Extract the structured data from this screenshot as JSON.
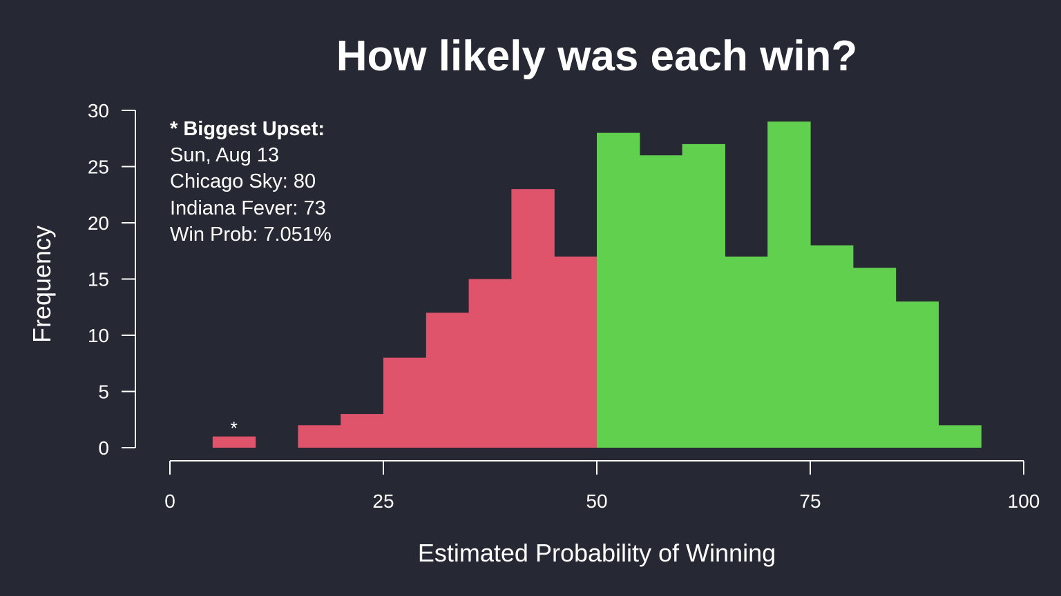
{
  "chart_data": {
    "type": "bar",
    "title": "How likely was each win?",
    "xlabel": "Estimated Probability of Winning",
    "ylabel": "Frequency",
    "xlim": [
      0,
      100
    ],
    "ylim": [
      0,
      30
    ],
    "x_ticks": [
      0,
      25,
      50,
      75,
      100
    ],
    "y_ticks": [
      0,
      5,
      10,
      15,
      20,
      25,
      30
    ],
    "bin_width": 5,
    "bins": [
      {
        "x0": 5,
        "x1": 10,
        "count": 1
      },
      {
        "x0": 15,
        "x1": 20,
        "count": 2
      },
      {
        "x0": 20,
        "x1": 25,
        "count": 3
      },
      {
        "x0": 25,
        "x1": 30,
        "count": 8
      },
      {
        "x0": 30,
        "x1": 35,
        "count": 12
      },
      {
        "x0": 35,
        "x1": 40,
        "count": 15
      },
      {
        "x0": 40,
        "x1": 45,
        "count": 23
      },
      {
        "x0": 45,
        "x1": 50,
        "count": 17
      },
      {
        "x0": 50,
        "x1": 55,
        "count": 28
      },
      {
        "x0": 55,
        "x1": 60,
        "count": 26
      },
      {
        "x0": 60,
        "x1": 65,
        "count": 27
      },
      {
        "x0": 65,
        "x1": 70,
        "count": 17
      },
      {
        "x0": 70,
        "x1": 75,
        "count": 29
      },
      {
        "x0": 75,
        "x1": 80,
        "count": 18
      },
      {
        "x0": 80,
        "x1": 85,
        "count": 16
      },
      {
        "x0": 85,
        "x1": 90,
        "count": 13
      },
      {
        "x0": 90,
        "x1": 95,
        "count": 2
      }
    ],
    "color_threshold": 50,
    "colors": {
      "below": "#df536b",
      "above": "#61d04f",
      "background": "#262833"
    },
    "grid": false,
    "marker": {
      "text": "*",
      "x": 7.5,
      "y": 1
    },
    "annotation": {
      "heading": "* Biggest Upset:",
      "lines": [
        "Sun, Aug 13",
        "Chicago Sky: 80",
        "Indiana Fever: 73",
        "Win Prob: 7.051%"
      ]
    }
  }
}
